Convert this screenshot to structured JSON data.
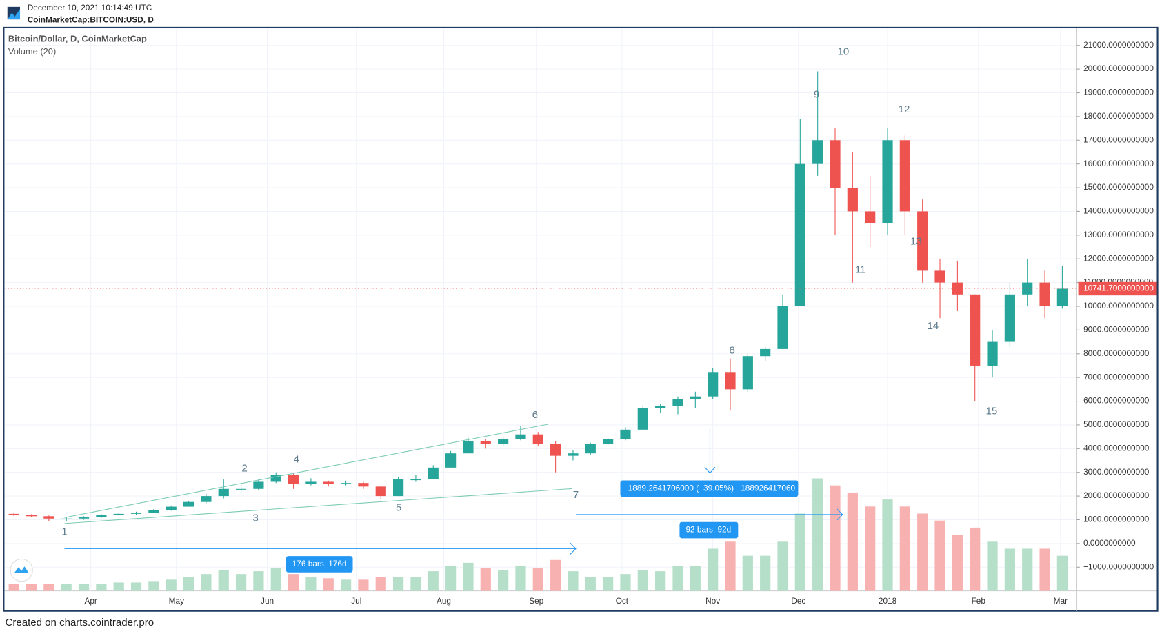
{
  "header": {
    "timestamp": "December 10, 2021 10:14:49 UTC",
    "symbol": "CoinMarketCap:BITCOIN:USD, D"
  },
  "footer": "Created on charts.cointrader.pro",
  "chart_data": {
    "type": "candlestick",
    "title": "Bitcoin/Dollar, D, CoinMarketCap",
    "volume_label": "Volume (20)",
    "up_color": "#26a69a",
    "down_color": "#ef5350",
    "volume_up_color": "#b5dfc9",
    "volume_down_color": "#f7b1b0",
    "candles": [
      [
        1250,
        1280,
        1150,
        1200
      ],
      [
        1200,
        1230,
        1100,
        1150
      ],
      [
        1150,
        1180,
        950,
        1050
      ],
      [
        1050,
        1100,
        950,
        1050
      ],
      [
        1050,
        1150,
        1000,
        1100
      ],
      [
        1100,
        1230,
        1080,
        1200
      ],
      [
        1200,
        1280,
        1180,
        1250
      ],
      [
        1250,
        1340,
        1220,
        1300
      ],
      [
        1300,
        1450,
        1290,
        1400
      ],
      [
        1400,
        1600,
        1380,
        1550
      ],
      [
        1550,
        1800,
        1550,
        1750
      ],
      [
        1750,
        2100,
        1700,
        2000
      ],
      [
        2000,
        2700,
        1900,
        2300
      ],
      [
        2300,
        2500,
        2100,
        2300
      ],
      [
        2300,
        2700,
        2250,
        2600
      ],
      [
        2600,
        3000,
        2550,
        2900
      ],
      [
        2900,
        2950,
        2300,
        2500
      ],
      [
        2500,
        2750,
        2450,
        2600
      ],
      [
        2600,
        2650,
        2400,
        2500
      ],
      [
        2500,
        2650,
        2450,
        2550
      ],
      [
        2550,
        2600,
        2300,
        2400
      ],
      [
        2400,
        2450,
        1850,
        2000
      ],
      [
        2000,
        2800,
        2000,
        2700
      ],
      [
        2700,
        2900,
        2600,
        2700
      ],
      [
        2700,
        3300,
        2700,
        3200
      ],
      [
        3200,
        3900,
        3200,
        3800
      ],
      [
        3800,
        4450,
        3800,
        4300
      ],
      [
        4300,
        4400,
        4000,
        4200
      ],
      [
        4200,
        4500,
        4100,
        4400
      ],
      [
        4400,
        4950,
        4350,
        4600
      ],
      [
        4600,
        4700,
        4100,
        4200
      ],
      [
        4200,
        4300,
        3000,
        3700
      ],
      [
        3700,
        3950,
        3500,
        3800
      ],
      [
        3800,
        4250,
        3750,
        4200
      ],
      [
        4200,
        4450,
        4150,
        4400
      ],
      [
        4400,
        4900,
        4350,
        4800
      ],
      [
        4800,
        5800,
        4800,
        5700
      ],
      [
        5700,
        5900,
        5500,
        5800
      ],
      [
        5800,
        6200,
        5450,
        6100
      ],
      [
        6100,
        6400,
        5700,
        6200
      ],
      [
        6200,
        7400,
        6100,
        7200
      ],
      [
        7200,
        7800,
        5600,
        6500
      ],
      [
        6500,
        8000,
        6400,
        7900
      ],
      [
        7900,
        8300,
        7700,
        8200
      ],
      [
        8200,
        10500,
        8200,
        10000
      ],
      [
        10000,
        17900,
        10000,
        16000
      ],
      [
        16000,
        19900,
        15500,
        17000
      ],
      [
        17000,
        17500,
        13000,
        15000
      ],
      [
        15000,
        16500,
        11000,
        14000
      ],
      [
        14000,
        15500,
        12500,
        13500
      ],
      [
        13500,
        17500,
        13000,
        17000
      ],
      [
        17000,
        17200,
        13000,
        14000
      ],
      [
        14000,
        14500,
        11000,
        11500
      ],
      [
        11500,
        12000,
        9500,
        11000
      ],
      [
        11000,
        11900,
        9800,
        10500
      ],
      [
        10500,
        10500,
        6000,
        7500
      ],
      [
        7500,
        9000,
        7000,
        8500
      ],
      [
        8500,
        11000,
        8300,
        10500
      ],
      [
        10500,
        12000,
        10000,
        11000
      ],
      [
        11000,
        11500,
        9500,
        10000
      ],
      [
        10000,
        11700,
        9900,
        10741.7
      ]
    ],
    "volume": [
      5,
      5,
      5,
      5,
      5,
      5,
      6,
      6,
      7,
      8,
      10,
      12,
      15,
      12,
      14,
      16,
      12,
      10,
      9,
      8,
      8,
      10,
      10,
      10,
      14,
      18,
      20,
      16,
      15,
      18,
      16,
      22,
      14,
      10,
      10,
      12,
      15,
      14,
      18,
      18,
      30,
      35,
      25,
      25,
      35,
      55,
      80,
      75,
      70,
      60,
      65,
      60,
      55,
      50,
      40,
      45,
      35,
      30,
      30,
      30,
      25
    ],
    "vlim": [
      0,
      400
    ],
    "xlim": [
      -0.5,
      60.83
    ],
    "xticks": [
      {
        "value": 4.4,
        "label": "Apr"
      },
      {
        "value": 9.3,
        "label": "May"
      },
      {
        "value": 14.5,
        "label": "Jun"
      },
      {
        "value": 19.6,
        "label": "Jul"
      },
      {
        "value": 24.6,
        "label": "Aug"
      },
      {
        "value": 29.9,
        "label": "Sep"
      },
      {
        "value": 34.8,
        "label": "Oct"
      },
      {
        "value": 40.0,
        "label": "Nov"
      },
      {
        "value": 44.9,
        "label": "Dec"
      },
      {
        "value": 50.0,
        "label": "2018"
      },
      {
        "value": 55.2,
        "label": "Feb"
      },
      {
        "value": 59.9,
        "label": "Mar"
      }
    ],
    "ylim": [
      -2000,
      21719
    ],
    "yticks": [
      {
        "value": -1000,
        "label": "−1000.0000000000"
      },
      {
        "value": 0,
        "label": "0.0000000000"
      },
      {
        "value": 1000,
        "label": "1000.0000000000"
      },
      {
        "value": 2000,
        "label": "2000.0000000000"
      },
      {
        "value": 3000,
        "label": "3000.0000000000"
      },
      {
        "value": 4000,
        "label": "4000.0000000000"
      },
      {
        "value": 5000,
        "label": "5000.0000000000"
      },
      {
        "value": 6000,
        "label": "6000.0000000000"
      },
      {
        "value": 7000,
        "label": "7000.0000000000"
      },
      {
        "value": 8000,
        "label": "8000.0000000000"
      },
      {
        "value": 9000,
        "label": "9000.0000000000"
      },
      {
        "value": 10000,
        "label": "10000.0000000000"
      },
      {
        "value": 11000,
        "label": "11000.0000000000"
      },
      {
        "value": 12000,
        "label": "12000.0000000000"
      },
      {
        "value": 13000,
        "label": "13000.0000000000"
      },
      {
        "value": 14000,
        "label": "14000.0000000000"
      },
      {
        "value": 15000,
        "label": "15000.0000000000"
      },
      {
        "value": 16000,
        "label": "16000.0000000000"
      },
      {
        "value": 17000,
        "label": "17000.0000000000"
      },
      {
        "value": 18000,
        "label": "18000.0000000000"
      },
      {
        "value": 19000,
        "label": "19000.0000000000"
      },
      {
        "value": 20000,
        "label": "20000.0000000000"
      },
      {
        "value": 21000,
        "label": "21000.0000000000"
      }
    ],
    "grid": true,
    "last_price": {
      "value": 10741.7,
      "label": "10741.7000000000"
    },
    "annotations": {
      "waves": [
        "1",
        "2",
        "3",
        "4",
        "5",
        "6",
        "7",
        "8",
        "9",
        "10",
        "11",
        "12",
        "13",
        "14",
        "15"
      ],
      "measure_price": "−1889.2641706000 (−39.05%) −188926417060",
      "measure_bars_short": "92 bars, 92d",
      "measure_bars_long": "176 bars, 176d"
    }
  }
}
